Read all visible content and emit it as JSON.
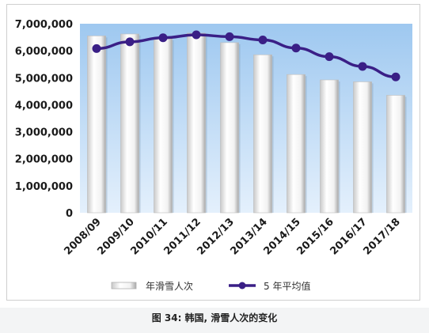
{
  "caption": "图 34: 韩国, 滑雪人次的变化",
  "colors": {
    "plot_bg_top": "#9ec8f0",
    "plot_bg_bottom": "#e4f0fc",
    "bar_fill": "#f4f4f4",
    "bar_shade": "#b8b8b8",
    "line": "#3a1f86"
  },
  "chart_data": {
    "type": "bar",
    "title": "",
    "xlabel": "",
    "ylabel": "",
    "categories": [
      "2008/09",
      "2009/10",
      "2010/11",
      "2011/12",
      "2012/13",
      "2013/14",
      "2014/15",
      "2015/16",
      "2016/17",
      "2017/18"
    ],
    "series": [
      {
        "name": "年滑雪人次",
        "type": "bar",
        "values": [
          6550000,
          6620000,
          6450000,
          6650000,
          6300000,
          5850000,
          5120000,
          4920000,
          4850000,
          4350000
        ]
      },
      {
        "name": "5 年平均值",
        "type": "line",
        "values": [
          6080000,
          6330000,
          6480000,
          6590000,
          6520000,
          6400000,
          6100000,
          5780000,
          5420000,
          5030000
        ]
      }
    ],
    "ylim": [
      0,
      7000000
    ],
    "yticks": [
      0,
      1000000,
      2000000,
      3000000,
      4000000,
      5000000,
      6000000,
      7000000
    ],
    "ytick_labels": [
      "0",
      "1,000,000",
      "2,000,000",
      "3,000,000",
      "4,000,000",
      "5,000,000",
      "6,000,000",
      "7,000,000"
    ],
    "grid": false,
    "legend_position": "bottom"
  }
}
